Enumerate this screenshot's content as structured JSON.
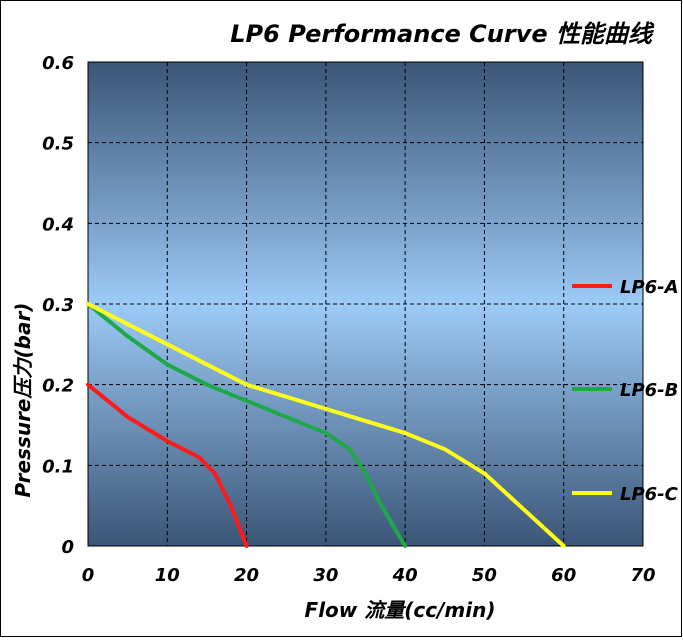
{
  "chart_data": {
    "type": "line",
    "title": "LP6 Performance Curve 性能曲线",
    "x_label": "Flow 流量(cc/min)",
    "y_label": "Pressure压力(bar)",
    "xlim": [
      0,
      70
    ],
    "xticks": [
      0,
      10,
      20,
      30,
      40,
      50,
      60,
      70
    ],
    "ylim": [
      0,
      0.6
    ],
    "yticks": [
      0,
      0.1,
      0.2,
      0.3,
      0.4,
      0.5,
      0.6
    ],
    "grid": true,
    "legend": "right",
    "series": [
      {
        "name": "LP6-A",
        "color": "#ff1a1a",
        "x": [
          0,
          5,
          10,
          12,
          14,
          16,
          18,
          20
        ],
        "values": [
          0.2,
          0.16,
          0.13,
          0.12,
          0.11,
          0.09,
          0.05,
          0
        ]
      },
      {
        "name": "LP6-B",
        "color": "#1fa84a",
        "x": [
          0,
          5,
          10,
          15,
          20,
          25,
          30,
          33,
          35,
          37,
          40
        ],
        "values": [
          0.3,
          0.26,
          0.225,
          0.2,
          0.18,
          0.16,
          0.14,
          0.12,
          0.09,
          0.05,
          0
        ]
      },
      {
        "name": "LP6-C",
        "color": "#ffff1a",
        "x": [
          0,
          10,
          20,
          30,
          40,
          45,
          50,
          55,
          60
        ],
        "values": [
          0.3,
          0.25,
          0.2,
          0.17,
          0.14,
          0.12,
          0.09,
          0.045,
          0
        ]
      }
    ]
  }
}
